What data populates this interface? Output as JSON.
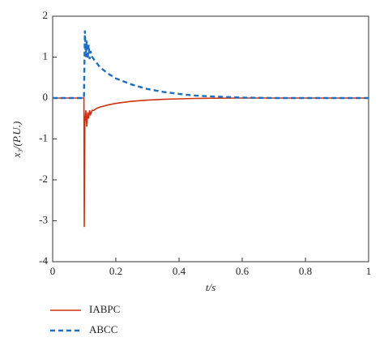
{
  "chart_data": {
    "type": "line",
    "xlabel": "t/s",
    "ylabel": "x₃/(P.U.)",
    "x": [
      0,
      0.099,
      0.1,
      0.102,
      0.105,
      0.108,
      0.111,
      0.114,
      0.117,
      0.12,
      0.125,
      0.13,
      0.14,
      0.15,
      0.175,
      0.2,
      0.25,
      0.3,
      0.35,
      0.4,
      0.45,
      0.5,
      0.6,
      0.7,
      0.8,
      0.9,
      1.0
    ],
    "series": [
      {
        "name": "IABPC",
        "color": "#cc3311",
        "dashed": false,
        "values": [
          0,
          0,
          -3.15,
          -0.6,
          -0.3,
          -0.7,
          -0.35,
          -0.5,
          -0.3,
          -0.4,
          -0.3,
          -0.3,
          -0.25,
          -0.22,
          -0.17,
          -0.13,
          -0.08,
          -0.05,
          -0.03,
          -0.02,
          -0.01,
          -0.005,
          0,
          0,
          0,
          0,
          0
        ]
      },
      {
        "name": "ABCC",
        "color": "#1f6fc0",
        "dashed": true,
        "values": [
          0,
          0,
          0.5,
          1.65,
          1.0,
          1.4,
          0.95,
          1.3,
          0.95,
          1.15,
          1.0,
          0.95,
          0.85,
          0.75,
          0.6,
          0.48,
          0.33,
          0.22,
          0.15,
          0.1,
          0.06,
          0.04,
          0.01,
          0,
          0,
          0,
          0
        ]
      }
    ],
    "xlim": [
      0,
      1
    ],
    "ylim": [
      -4,
      2
    ],
    "xticks": [
      0,
      0.2,
      0.4,
      0.6,
      0.8,
      1
    ],
    "yticks": [
      -4,
      -3,
      -2,
      -1,
      0,
      1,
      2
    ],
    "grid": false,
    "legend": "below-left"
  }
}
